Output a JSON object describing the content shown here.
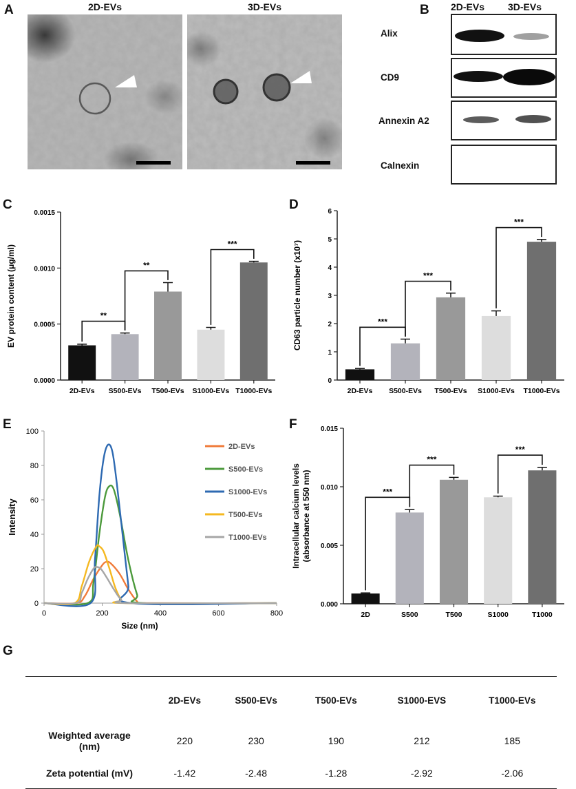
{
  "panels": {
    "a": "A",
    "b": "B",
    "c": "C",
    "d": "D",
    "e": "E",
    "f": "F",
    "g": "G"
  },
  "tem": {
    "left_title": "2D-EVs",
    "right_title": "3D-EVs"
  },
  "western": {
    "col1": "2D-EVs",
    "col2": "3D-EVs",
    "bands": [
      {
        "label": "Alix",
        "left": 0.9,
        "right": 0.3
      },
      {
        "label": "CD9",
        "left": 0.9,
        "right": 1.0
      },
      {
        "label": "Annexin A2",
        "left": 0.55,
        "right": 0.6
      },
      {
        "label": "Calnexin",
        "left": 0,
        "right": 0
      }
    ]
  },
  "chart_data": [
    {
      "id": "C",
      "type": "bar",
      "ylabel": "EV protein content (μg/ml)",
      "ylim": [
        0,
        0.0015
      ],
      "yticks": [
        "0.0000",
        "0.0005",
        "0.0010",
        "0.0015"
      ],
      "categories": [
        "2D-EVs",
        "S500-EVs",
        "T500-EVs",
        "S1000-EVs",
        "T1000-EVs"
      ],
      "values": [
        0.00031,
        0.00041,
        0.00079,
        0.00045,
        0.00105
      ],
      "errors": [
        1e-05,
        1e-05,
        8e-05,
        2e-05,
        1e-05
      ],
      "colors": [
        "#111111",
        "#b3b3bb",
        "#999999",
        "#dddddd",
        "#6f6f6f"
      ],
      "significance": [
        {
          "from": 0,
          "to": 1,
          "label": "**"
        },
        {
          "from": 1,
          "to": 2,
          "label": "**"
        },
        {
          "from": 3,
          "to": 4,
          "label": "***"
        }
      ]
    },
    {
      "id": "D",
      "type": "bar",
      "ylabel": "CD63 particle number (x10⁷)",
      "ylim": [
        0,
        6
      ],
      "yticks": [
        "0",
        "1",
        "2",
        "3",
        "4",
        "5",
        "6"
      ],
      "categories": [
        "2D-EVs",
        "S500-EVs",
        "T500-EVs",
        "S1000-EVs",
        "T1000-EVs"
      ],
      "values": [
        0.38,
        1.3,
        2.93,
        2.27,
        4.9
      ],
      "errors": [
        0.03,
        0.15,
        0.15,
        0.18,
        0.08
      ],
      "colors": [
        "#111111",
        "#b3b3bb",
        "#999999",
        "#dddddd",
        "#6f6f6f"
      ],
      "significance": [
        {
          "from": 0,
          "to": 1,
          "label": "***"
        },
        {
          "from": 1,
          "to": 2,
          "label": "***"
        },
        {
          "from": 3,
          "to": 4,
          "label": "***"
        }
      ]
    },
    {
      "id": "E",
      "type": "line",
      "xlabel": "Size (nm)",
      "ylabel": "Intensity",
      "xlim": [
        0,
        800
      ],
      "ylim": [
        0,
        100
      ],
      "xticks": [
        "0",
        "200",
        "400",
        "600",
        "800"
      ],
      "yticks": [
        "0",
        "20",
        "40",
        "60",
        "80",
        "100"
      ],
      "series": [
        {
          "name": "2D-EVs",
          "color": "#f07b3a",
          "x": [
            0,
            110,
            140,
            170,
            200,
            215,
            230,
            260,
            290,
            320,
            340,
            800
          ],
          "y": [
            0,
            0,
            4,
            14,
            22,
            24,
            23,
            17,
            8,
            1,
            0,
            0
          ]
        },
        {
          "name": "S500-EVs",
          "color": "#4c9a3c",
          "x": [
            0,
            150,
            170,
            190,
            210,
            225,
            240,
            260,
            290,
            320,
            340,
            800
          ],
          "y": [
            0,
            0,
            12,
            40,
            62,
            68,
            66,
            52,
            25,
            5,
            0,
            0
          ]
        },
        {
          "name": "S1000-EVs",
          "color": "#2e6ab2",
          "x": [
            0,
            160,
            175,
            190,
            205,
            220,
            235,
            250,
            270,
            290,
            300,
            800
          ],
          "y": [
            0,
            0,
            25,
            62,
            84,
            92,
            88,
            70,
            40,
            10,
            0,
            0
          ]
        },
        {
          "name": "T500-EVs",
          "color": "#f5b820",
          "x": [
            0,
            105,
            130,
            155,
            180,
            190,
            205,
            225,
            245,
            265,
            280,
            800
          ],
          "y": [
            0,
            0,
            10,
            24,
            33,
            33,
            30,
            20,
            9,
            2,
            0,
            0
          ]
        },
        {
          "name": "T1000-EVs",
          "color": "#a6a6a6",
          "x": [
            0,
            110,
            130,
            150,
            170,
            180,
            195,
            215,
            240,
            265,
            290,
            800
          ],
          "y": [
            0,
            0,
            6,
            14,
            20,
            21,
            20,
            15,
            8,
            2,
            0,
            0
          ]
        }
      ]
    },
    {
      "id": "F",
      "type": "bar",
      "ylabel": "Intracellular calcium levels",
      "ylabel2": "(absorbance at 550 nm)",
      "ylim": [
        0,
        0.015
      ],
      "yticks": [
        "0.000",
        "0.005",
        "0.010",
        "0.015"
      ],
      "categories": [
        "2D",
        "S500",
        "T500",
        "S1000",
        "T1000"
      ],
      "values": [
        0.00088,
        0.0078,
        0.0106,
        0.0091,
        0.0114
      ],
      "errors": [
        5e-05,
        0.00025,
        0.0002,
        0.0001,
        0.00025
      ],
      "colors": [
        "#111111",
        "#b3b3bb",
        "#999999",
        "#dddddd",
        "#6f6f6f"
      ],
      "significance": [
        {
          "from": 0,
          "to": 1,
          "label": "***"
        },
        {
          "from": 1,
          "to": 2,
          "label": "***"
        },
        {
          "from": 3,
          "to": 4,
          "label": "***"
        }
      ]
    }
  ],
  "table": {
    "headers": [
      "2D-EVs",
      "S500-EVs",
      "T500-EVs",
      "S1000-EVS",
      "T1000-EVs"
    ],
    "rows": [
      {
        "label1": "Weighted average",
        "label2": "(nm)",
        "values": [
          "220",
          "230",
          "190",
          "212",
          "185"
        ]
      },
      {
        "label1": "Zeta potential (mV)",
        "label2": "",
        "values": [
          "-1.42",
          "-2.48",
          "-1.28",
          "-2.92",
          "-2.06"
        ]
      }
    ]
  }
}
